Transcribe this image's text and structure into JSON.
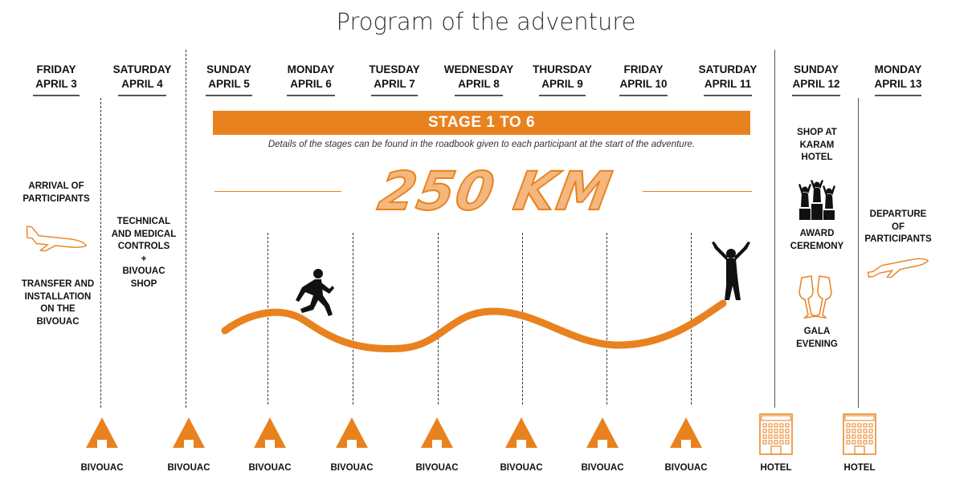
{
  "title": "Program of the adventure",
  "days": [
    {
      "weekday": "FRIDAY",
      "date": "APRIL 3"
    },
    {
      "weekday": "SATURDAY",
      "date": "APRIL 4"
    },
    {
      "weekday": "SUNDAY",
      "date": "APRIL 5"
    },
    {
      "weekday": "MONDAY",
      "date": "APRIL 6"
    },
    {
      "weekday": "TUESDAY",
      "date": "APRIL 7"
    },
    {
      "weekday": "WEDNESDAY",
      "date": "APRIL 8"
    },
    {
      "weekday": "THURSDAY",
      "date": "APRIL 9"
    },
    {
      "weekday": "FRIDAY",
      "date": "APRIL 10"
    },
    {
      "weekday": "SATURDAY",
      "date": "APRIL 11"
    },
    {
      "weekday": "SUNDAY",
      "date": "APRIL 12"
    },
    {
      "weekday": "MONDAY",
      "date": "APRIL 13"
    }
  ],
  "stage_banner": "STAGE 1 TO 6",
  "stage_details": "Details of the stages can be found in the roadbook given to each participant at the start of the adventure.",
  "distance": "250 KM",
  "notes": {
    "arrival": "ARRIVAL OF\nPARTICIPANTS",
    "transfer": "TRANSFER AND\nINSTALLATION\nON THE\nBIVOUAC",
    "technical": "TECHNICAL\nAND MEDICAL\nCONTROLS\n+\nBIVOUAC\nSHOP",
    "shop": "SHOP AT\nKARAM\nHOTEL",
    "award": "AWARD\nCEREMONY",
    "gala": "GALA\nEVENING",
    "departure": "DEPARTURE\nOF\nPARTICIPANTS"
  },
  "lodging": [
    "BIVOUAC",
    "BIVOUAC",
    "BIVOUAC",
    "BIVOUAC",
    "BIVOUAC",
    "BIVOUAC",
    "BIVOUAC",
    "BIVOUAC",
    "HOTEL",
    "HOTEL"
  ],
  "icons": {
    "plane": "airplane-outline-icon",
    "tent": "tent-icon",
    "hotel": "hotel-building-icon",
    "runner": "runner-silhouette-icon",
    "finisher": "finisher-arms-raised-icon",
    "podium": "podium-icon",
    "champagne": "champagne-glasses-icon"
  },
  "colors": {
    "accent": "#e8821f",
    "accent_light": "#f4b77d",
    "text": "#111111"
  }
}
